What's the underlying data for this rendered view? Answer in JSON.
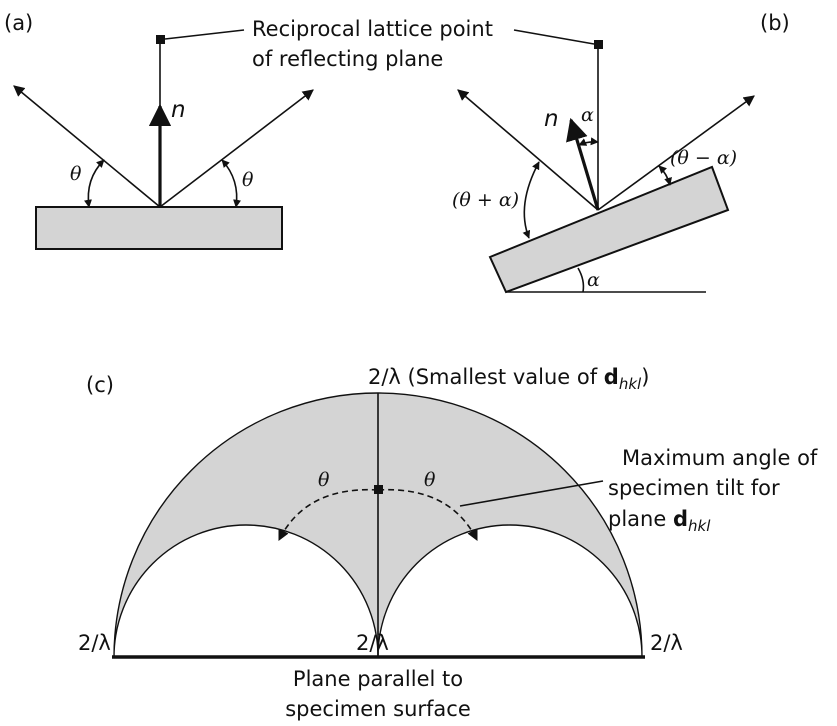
{
  "panels": {
    "a": {
      "tag": "(a)",
      "callout": [
        "Reciprocal lattice point",
        "of reflecting plane"
      ],
      "normal": "n",
      "angle_left": "θ",
      "angle_right": "θ"
    },
    "b": {
      "tag": "(b)",
      "normal": "n",
      "tilt": "α",
      "angle_plus": "(θ + α)",
      "angle_minus": "(θ − α)",
      "base_angle": "α"
    },
    "c": {
      "tag": "(c)",
      "top_label_prefix": "2/λ (Smallest value of ",
      "top_label_d": "d",
      "top_label_sub": "hkl",
      "top_label_suffix": ")",
      "annotation": [
        "Maximum angle of",
        "specimen tilt for",
        "plane "
      ],
      "annotation_d": "d",
      "annotation_sub": "hkl",
      "theta_left": "θ",
      "theta_right": "θ",
      "left_label": "2/λ",
      "center_label": "2/λ",
      "right_label": "2/λ",
      "bottom_label": [
        "Plane parallel to",
        "specimen surface"
      ]
    }
  }
}
